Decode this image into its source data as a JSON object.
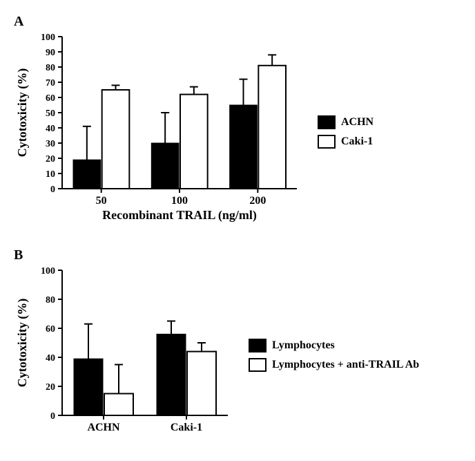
{
  "panelA": {
    "label": "A",
    "type": "bar",
    "categories": [
      "50",
      "100",
      "200"
    ],
    "series": [
      {
        "name": "ACHN",
        "color": "#000000",
        "values": [
          19,
          30,
          55
        ],
        "errors": [
          22,
          20,
          17
        ]
      },
      {
        "name": "Caki-1",
        "color": "#ffffff",
        "values": [
          65,
          62,
          81
        ],
        "errors": [
          3,
          5,
          7
        ]
      }
    ],
    "ylabel": "Cytotoxicity (%)",
    "xlabel": "Recombinant TRAIL (ng/ml)",
    "ylim": [
      0,
      100
    ],
    "ytick_step": 10,
    "background_color": "#ffffff",
    "border_color": "#000000",
    "bar_width": 0.35,
    "legend": [
      {
        "label": "ACHN",
        "color": "#000000"
      },
      {
        "label": "Caki-1",
        "color": "#ffffff"
      }
    ]
  },
  "panelB": {
    "label": "B",
    "type": "bar",
    "categories": [
      "ACHN",
      "Caki-1"
    ],
    "series": [
      {
        "name": "Lymphocytes",
        "color": "#000000",
        "values": [
          39,
          56
        ],
        "errors": [
          24,
          9
        ]
      },
      {
        "name": "Lymphocytes + anti-TRAIL Ab",
        "color": "#ffffff",
        "values": [
          15,
          44
        ],
        "errors": [
          20,
          6
        ]
      }
    ],
    "ylabel": "Cytotoxicity (%)",
    "ylim": [
      0,
      100
    ],
    "ytick_step": 20,
    "background_color": "#ffffff",
    "border_color": "#000000",
    "bar_width": 0.35,
    "legend": [
      {
        "label": "Lymphocytes",
        "color": "#000000"
      },
      {
        "label": "Lymphocytes + anti-TRAIL Ab",
        "color": "#ffffff"
      }
    ]
  }
}
